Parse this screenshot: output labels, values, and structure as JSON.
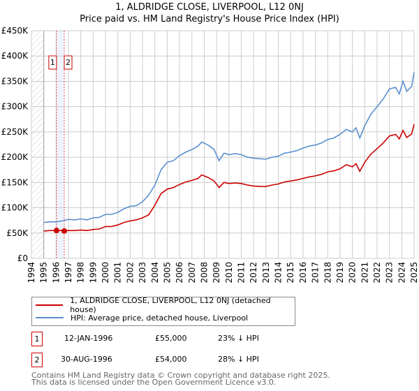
{
  "chart_data": {
    "type": "line",
    "title": "1, ALDRIDGE CLOSE, LIVERPOOL, L12 0NJ",
    "subtitle": "Price paid vs. HM Land Registry's House Price Index (HPI)",
    "xlim": [
      1994,
      2025
    ],
    "ylim": [
      0,
      450000
    ],
    "x_ticks": [
      "1994",
      "1995",
      "1996",
      "1997",
      "1998",
      "1999",
      "2000",
      "2001",
      "2002",
      "2003",
      "2004",
      "2005",
      "2006",
      "2007",
      "2008",
      "2009",
      "2010",
      "2011",
      "2012",
      "2013",
      "2014",
      "2015",
      "2016",
      "2017",
      "2018",
      "2019",
      "2020",
      "2021",
      "2022",
      "2023",
      "2024",
      "2025"
    ],
    "y_ticks": [
      {
        "v": 0,
        "label": "£0"
      },
      {
        "v": 50000,
        "label": "£50K"
      },
      {
        "v": 100000,
        "label": "£100K"
      },
      {
        "v": 150000,
        "label": "£150K"
      },
      {
        "v": 200000,
        "label": "£200K"
      },
      {
        "v": 250000,
        "label": "£250K"
      },
      {
        "v": 300000,
        "label": "£300K"
      },
      {
        "v": 350000,
        "label": "£350K"
      },
      {
        "v": 400000,
        "label": "£400K"
      },
      {
        "v": 450000,
        "label": "£450K"
      }
    ],
    "grid": true,
    "series": [
      {
        "name": "1, ALDRIDGE CLOSE, LIVERPOOL, L12 0NJ (detached house)",
        "color": "#cc0000",
        "x": [
          1995.0,
          1995.5,
          1996.0,
          1996.5,
          1997.0,
          1997.5,
          1998.0,
          1998.5,
          1999.0,
          1999.5,
          2000.0,
          2000.5,
          2001.0,
          2001.5,
          2002.0,
          2002.5,
          2003.0,
          2003.5,
          2004.0,
          2004.5,
          2005.0,
          2005.5,
          2006.0,
          2006.5,
          2007.0,
          2007.5,
          2007.8,
          2008.3,
          2008.8,
          2009.2,
          2009.6,
          2010.0,
          2010.5,
          2011.0,
          2011.5,
          2012.0,
          2012.5,
          2013.0,
          2013.5,
          2014.0,
          2014.5,
          2015.0,
          2015.5,
          2016.0,
          2016.5,
          2017.0,
          2017.5,
          2018.0,
          2018.5,
          2019.0,
          2019.5,
          2020.0,
          2020.3,
          2020.6,
          2021.0,
          2021.5,
          2022.0,
          2022.5,
          2023.0,
          2023.5,
          2023.8,
          2024.1,
          2024.4,
          2024.8,
          2025.0
        ],
        "y": [
          54000,
          55000,
          55000,
          55000,
          55000,
          55000,
          56000,
          55000,
          57000,
          58000,
          63000,
          63000,
          66000,
          71000,
          74000,
          76000,
          80000,
          86000,
          105000,
          128000,
          137000,
          140000,
          146000,
          151000,
          154000,
          158000,
          165000,
          160000,
          153000,
          140000,
          150000,
          148000,
          149000,
          148000,
          145000,
          143000,
          142000,
          142000,
          145000,
          147000,
          151000,
          153000,
          155000,
          158000,
          161000,
          163000,
          166000,
          171000,
          173000,
          177000,
          185000,
          181000,
          187000,
          172000,
          190000,
          206000,
          217000,
          228000,
          242000,
          245000,
          236000,
          253000,
          239000,
          246000,
          265000
        ]
      },
      {
        "name": "HPI: Average price, detached house, Liverpool",
        "color": "#5b8fd0",
        "x": [
          1995.0,
          1995.5,
          1996.0,
          1996.5,
          1997.0,
          1997.5,
          1998.0,
          1998.5,
          1999.0,
          1999.5,
          2000.0,
          2000.5,
          2001.0,
          2001.5,
          2002.0,
          2002.5,
          2003.0,
          2003.5,
          2004.0,
          2004.5,
          2005.0,
          2005.5,
          2006.0,
          2006.5,
          2007.0,
          2007.5,
          2007.8,
          2008.3,
          2008.8,
          2009.2,
          2009.6,
          2010.0,
          2010.5,
          2011.0,
          2011.5,
          2012.0,
          2012.5,
          2013.0,
          2013.5,
          2014.0,
          2014.5,
          2015.0,
          2015.5,
          2016.0,
          2016.5,
          2017.0,
          2017.5,
          2018.0,
          2018.5,
          2019.0,
          2019.5,
          2020.0,
          2020.3,
          2020.6,
          2021.0,
          2021.5,
          2022.0,
          2022.5,
          2023.0,
          2023.5,
          2023.8,
          2024.1,
          2024.4,
          2024.8,
          2025.0
        ],
        "y": [
          71000,
          72000,
          72000,
          74000,
          77000,
          76000,
          78000,
          76000,
          80000,
          81000,
          87000,
          87000,
          91000,
          98000,
          103000,
          104000,
          112000,
          125000,
          145000,
          175000,
          190000,
          193000,
          203000,
          210000,
          215000,
          222000,
          230000,
          224000,
          215000,
          193000,
          208000,
          205000,
          207000,
          205000,
          200000,
          198000,
          197000,
          196000,
          200000,
          202000,
          208000,
          210000,
          213000,
          218000,
          222000,
          224000,
          228000,
          235000,
          238000,
          245000,
          255000,
          250000,
          258000,
          238000,
          262000,
          285000,
          300000,
          315000,
          335000,
          338000,
          325000,
          350000,
          330000,
          340000,
          368000
        ]
      }
    ],
    "sales": [
      {
        "label": "1",
        "x": 1996.03,
        "y": 55000
      },
      {
        "label": "2",
        "x": 1996.66,
        "y": 54000
      }
    ],
    "legend_position": "bottom"
  },
  "legend": {
    "items": [
      "1, ALDRIDGE CLOSE, LIVERPOOL, L12 0NJ (detached house)",
      "HPI: Average price, detached house, Liverpool"
    ]
  },
  "transactions": [
    {
      "num": "1",
      "date": "12-JAN-1996",
      "price": "£55,000",
      "hpi": "23% ↓ HPI"
    },
    {
      "num": "2",
      "date": "30-AUG-1996",
      "price": "£54,000",
      "hpi": "28% ↓ HPI"
    }
  ],
  "footer": {
    "line1": "Contains HM Land Registry data © Crown copyright and database right 2025.",
    "line2": "This data is licensed under the Open Government Licence v3.0."
  }
}
